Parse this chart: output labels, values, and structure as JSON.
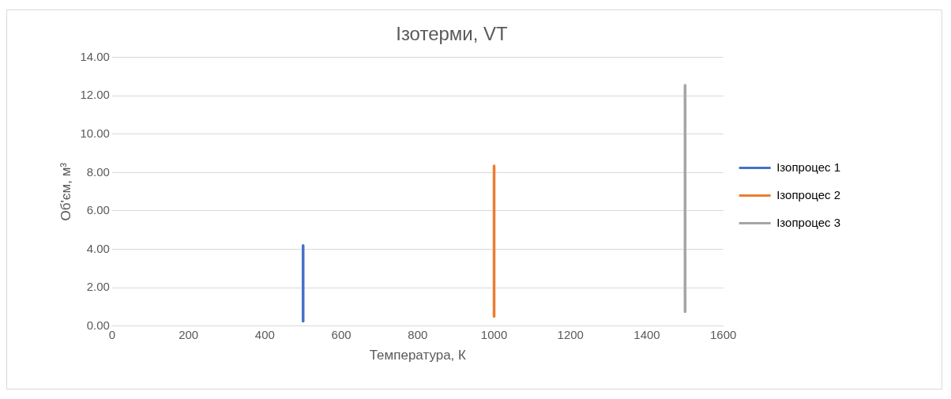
{
  "chart_data": {
    "type": "line",
    "title": "Ізотерми, VT",
    "xlabel": "Температура, К",
    "ylabel": "Об'єм, м³",
    "xlim": [
      0,
      1600
    ],
    "xticks": [
      0,
      200,
      400,
      600,
      800,
      1000,
      1200,
      1400,
      1600
    ],
    "ylim": [
      0,
      14
    ],
    "yticks": [
      {
        "value": 0,
        "label": "0.00"
      },
      {
        "value": 2,
        "label": "2.00"
      },
      {
        "value": 4,
        "label": "4.00"
      },
      {
        "value": 6,
        "label": "6.00"
      },
      {
        "value": 8,
        "label": "8.00"
      },
      {
        "value": 10,
        "label": "10.00"
      },
      {
        "value": 12,
        "label": "12.00"
      },
      {
        "value": 14,
        "label": "14.00"
      }
    ],
    "grid": "y",
    "legend": "right",
    "marker": "none",
    "series": [
      {
        "name": "Ізопроцес 1",
        "color": "#4472c4",
        "x": [
          500,
          500
        ],
        "values": [
          0.25,
          4.2
        ]
      },
      {
        "name": "Ізопроцес 2",
        "color": "#ed7d31",
        "x": [
          1000,
          1000
        ],
        "values": [
          0.5,
          8.35
        ]
      },
      {
        "name": "Ізопроцес 3",
        "color": "#a5a5a5",
        "x": [
          1500,
          1500
        ],
        "values": [
          0.75,
          12.55
        ]
      }
    ]
  }
}
